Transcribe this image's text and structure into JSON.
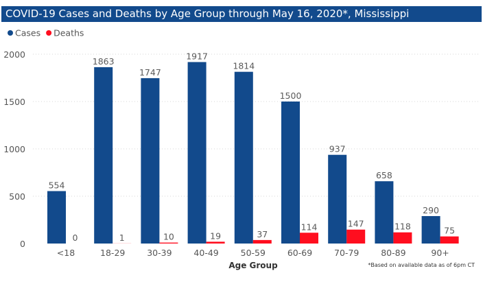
{
  "chart_data": {
    "type": "bar",
    "title": "COVID-19 Cases and Deaths by Age Group through May 16, 2020*, Mississippi",
    "xlabel": "Age Group",
    "ylabel": "",
    "footnote": "*Based on available data as of 6pm CT",
    "categories": [
      "<18",
      "18-29",
      "30-39",
      "40-49",
      "50-59",
      "60-69",
      "70-79",
      "80-89",
      "90+"
    ],
    "series": [
      {
        "name": "Cases",
        "color": "#124a8c",
        "values": [
          554,
          1863,
          1747,
          1917,
          1814,
          1500,
          937,
          658,
          290
        ]
      },
      {
        "name": "Deaths",
        "color": "#ff0e1f",
        "values": [
          0,
          1,
          10,
          19,
          37,
          114,
          147,
          118,
          75
        ]
      }
    ],
    "ylim": [
      0,
      2000
    ],
    "yticks": [
      0,
      500,
      1000,
      1500,
      2000
    ],
    "ytick_labels": [
      "0",
      "500",
      "1000",
      "1500",
      "2000"
    ],
    "grid": true,
    "legend_position": "top-left",
    "data_labels": true
  }
}
